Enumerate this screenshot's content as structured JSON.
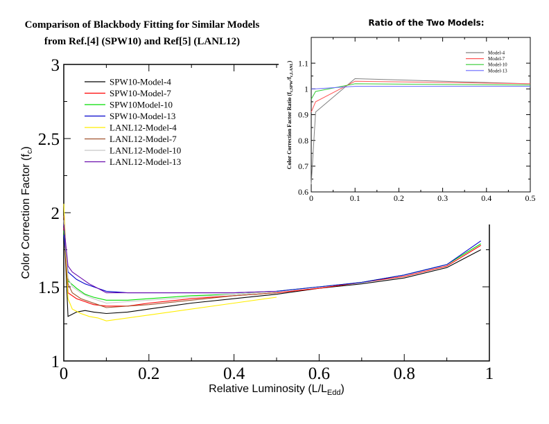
{
  "figure": {
    "title_line1": "Comparison of Blackbody Fitting for Similar Models",
    "title_line2": "from Ref.[4] (SPW10) and Ref[5] (LANL12)"
  },
  "chart_data": [
    {
      "type": "line",
      "xlabel": "Relative Luminosity (L/L",
      "xlabel_sub": "Edd",
      "xlabel_close": ")",
      "ylabel": "Color Correction Factor (f",
      "ylabel_sub": "c",
      "ylabel_close": ")",
      "xlim": [
        0,
        1
      ],
      "ylim": [
        1,
        3
      ],
      "xticks": [
        0,
        0.2,
        0.4,
        0.6,
        0.8,
        1
      ],
      "xtick_labels": [
        "0",
        "0.2",
        "0.4",
        "0.6",
        "0.8",
        "1"
      ],
      "yticks": [
        1,
        1.5,
        2,
        2.5,
        3
      ],
      "ytick_labels": [
        "1",
        "1.5",
        "2",
        "2.5",
        "3"
      ],
      "grid": false,
      "legend_position": "top-left",
      "series": [
        {
          "name": "SPW10-Model-4",
          "color": "#000000",
          "x": [
            0.0,
            0.01,
            0.03,
            0.05,
            0.07,
            0.1,
            0.15,
            0.2,
            0.3,
            0.4,
            0.5,
            0.6,
            0.7,
            0.8,
            0.9,
            0.98
          ],
          "y": [
            1.95,
            1.3,
            1.33,
            1.34,
            1.33,
            1.32,
            1.33,
            1.35,
            1.39,
            1.42,
            1.45,
            1.49,
            1.52,
            1.56,
            1.63,
            1.75
          ]
        },
        {
          "name": "SPW10-Model-7",
          "color": "#ff0000",
          "x": [
            0.0,
            0.01,
            0.03,
            0.05,
            0.07,
            0.1,
            0.15,
            0.2,
            0.3,
            0.4,
            0.5,
            0.6,
            0.7,
            0.8,
            0.9,
            0.98
          ],
          "y": [
            1.9,
            1.46,
            1.42,
            1.4,
            1.38,
            1.37,
            1.37,
            1.39,
            1.42,
            1.44,
            1.46,
            1.49,
            1.53,
            1.57,
            1.64,
            1.78
          ]
        },
        {
          "name": "SPW10Model-10",
          "color": "#00dd00",
          "x": [
            0.0,
            0.01,
            0.03,
            0.05,
            0.07,
            0.1,
            0.15,
            0.2,
            0.3,
            0.4,
            0.5,
            0.6,
            0.7,
            0.8,
            0.9,
            0.98
          ],
          "y": [
            1.88,
            1.54,
            1.49,
            1.45,
            1.43,
            1.41,
            1.41,
            1.42,
            1.44,
            1.45,
            1.47,
            1.5,
            1.53,
            1.58,
            1.65,
            1.79
          ]
        },
        {
          "name": "SPW10-Model-13",
          "color": "#0000cc",
          "x": [
            0.0,
            0.01,
            0.03,
            0.05,
            0.07,
            0.1,
            0.15,
            0.2,
            0.3,
            0.4,
            0.5,
            0.6,
            0.7,
            0.8,
            0.9,
            0.98
          ],
          "y": [
            1.85,
            1.6,
            1.55,
            1.52,
            1.5,
            1.47,
            1.46,
            1.46,
            1.46,
            1.46,
            1.47,
            1.5,
            1.53,
            1.58,
            1.65,
            1.81
          ]
        },
        {
          "name": "LANL12-Model-4",
          "color": "#ffee00",
          "x": [
            0.0,
            0.01,
            0.02,
            0.04,
            0.06,
            0.08,
            0.1,
            0.2,
            0.3,
            0.4,
            0.5
          ],
          "y": [
            2.06,
            1.42,
            1.35,
            1.32,
            1.3,
            1.29,
            1.27,
            1.31,
            1.35,
            1.39,
            1.43
          ]
        },
        {
          "name": "LANL12-Model-7",
          "color": "#a0522d",
          "x": [
            0.0,
            0.01,
            0.02,
            0.04,
            0.06,
            0.08,
            0.1,
            0.2,
            0.3,
            0.4,
            0.5
          ],
          "y": [
            1.98,
            1.52,
            1.46,
            1.42,
            1.4,
            1.38,
            1.36,
            1.38,
            1.41,
            1.44,
            1.46
          ]
        },
        {
          "name": "LANL12-Model-10",
          "color": "#c8c8c8",
          "x": [
            0.0,
            0.01,
            0.02,
            0.04,
            0.06,
            0.08,
            0.1,
            0.2,
            0.3,
            0.4,
            0.5
          ],
          "y": [
            1.95,
            1.56,
            1.5,
            1.46,
            1.43,
            1.41,
            1.39,
            1.41,
            1.43,
            1.45,
            1.47
          ]
        },
        {
          "name": "LANL12-Model-13",
          "color": "#6a0dad",
          "x": [
            0.0,
            0.01,
            0.02,
            0.04,
            0.06,
            0.08,
            0.1,
            0.2,
            0.3,
            0.4,
            0.5
          ],
          "y": [
            1.92,
            1.64,
            1.6,
            1.56,
            1.52,
            1.49,
            1.46,
            1.46,
            1.46,
            1.46,
            1.47
          ]
        }
      ]
    },
    {
      "type": "line",
      "title": "Ratio of the Two Models:",
      "ylabel": "Color Correction Factor Ratio (f",
      "ylabel_sub": "c,SPW",
      "ylabel_mid": "/f",
      "ylabel_sub2": "c,LANL",
      "ylabel_close": ")",
      "xlim": [
        0,
        0.5
      ],
      "ylim": [
        0.6,
        1.2
      ],
      "xticks": [
        0,
        0.1,
        0.2,
        0.3,
        0.4,
        0.5
      ],
      "xtick_labels": [
        "0",
        "0.1",
        "0.2",
        "0.3",
        "0.4",
        "0.5"
      ],
      "yticks": [
        0.6,
        0.7,
        0.8,
        0.9,
        1,
        1.1
      ],
      "ytick_labels": [
        "0.6",
        "0.7",
        "0.8",
        "0.9",
        "1",
        "1.1"
      ],
      "grid": false,
      "legend_position": "top-right",
      "series": [
        {
          "name": "Model-4",
          "color": "#808080",
          "x": [
            0.0,
            0.01,
            0.1,
            0.5
          ],
          "y": [
            0.63,
            0.91,
            1.04,
            1.02
          ]
        },
        {
          "name": "Model-7",
          "color": "#ff5555",
          "x": [
            0.0,
            0.01,
            0.1,
            0.5
          ],
          "y": [
            0.91,
            0.95,
            1.03,
            1.02
          ]
        },
        {
          "name": "Model-10",
          "color": "#33cc33",
          "x": [
            0.0,
            0.01,
            0.1,
            0.5
          ],
          "y": [
            0.96,
            0.99,
            1.02,
            1.015
          ]
        },
        {
          "name": "Model-13",
          "color": "#6666ff",
          "x": [
            0.0,
            0.01,
            0.1,
            0.5
          ],
          "y": [
            1.0,
            1.0,
            1.01,
            1.01
          ]
        }
      ]
    }
  ]
}
